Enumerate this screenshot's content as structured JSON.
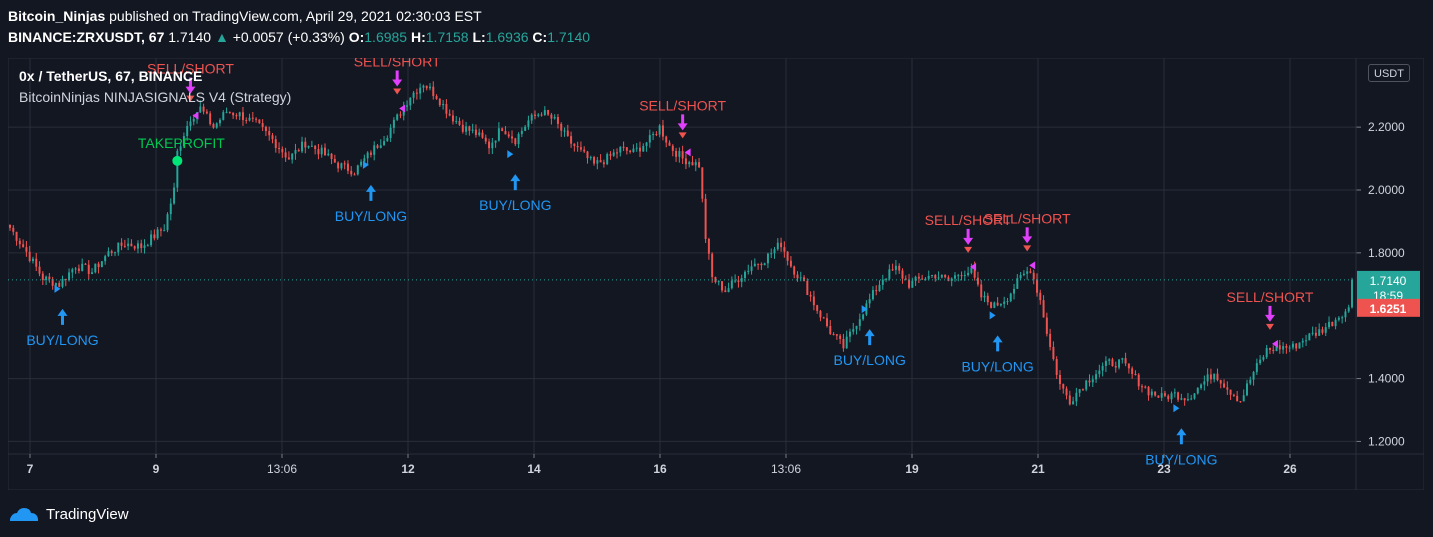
{
  "header": {
    "publisher": "Bitcoin_Ninjas",
    "published_text": "published on TradingView.com, April 29, 2021 02:30:03 EST",
    "symbol": "BINANCE:ZRXUSDT, 67",
    "last": "1.7140",
    "change": "+0.0057 (+0.33%)",
    "open_label": "O:",
    "open": "1.6985",
    "high_label": "H:",
    "high": "1.7158",
    "low_label": "L:",
    "low": "1.6936",
    "close_label": "C:",
    "close": "1.7140"
  },
  "legend": {
    "title": "0x / TetherUS, 67, BINANCE",
    "indicator": "BitcoinNinjas NINJASIGNALS V4 (Strategy)"
  },
  "price_axis": {
    "currency": "USDT",
    "last_price_label": "1.7140",
    "countdown_label": "18:59",
    "red_label": "1.6251"
  },
  "footer": {
    "brand": "TradingView"
  },
  "colors": {
    "background": "#131722",
    "up": "#26a69a",
    "down": "#ef5350",
    "buy": "#2196f3",
    "sell": "#ef5350",
    "magenta": "#e040fb",
    "grid": "#2a2e39"
  },
  "chart_data": {
    "type": "candlestick",
    "ylim": [
      1.16,
      2.42
    ],
    "y_ticks": [
      "2.2000",
      "2.0000",
      "1.8000",
      "1.4000",
      "1.2000"
    ],
    "x_ticks": [
      "7",
      "9",
      "13:06",
      "12",
      "14",
      "16",
      "13:06",
      "19",
      "21",
      "23",
      "26"
    ],
    "bold_x_ticks": [
      "7",
      "9",
      "12",
      "14",
      "16",
      "19",
      "21",
      "23",
      "26"
    ],
    "grid": true,
    "series": [
      {
        "values": [
          [
            0,
            1.88
          ],
          [
            4,
            1.82
          ],
          [
            10,
            1.72
          ],
          [
            15,
            1.7
          ],
          [
            20,
            1.76
          ],
          [
            25,
            1.74
          ],
          [
            30,
            1.8
          ],
          [
            35,
            1.83
          ],
          [
            40,
            1.82
          ],
          [
            47,
            1.88
          ],
          [
            50,
            2.0
          ],
          [
            51,
            2.12
          ],
          [
            53,
            2.18
          ],
          [
            55,
            2.23
          ],
          [
            58,
            2.26
          ],
          [
            62,
            2.2
          ],
          [
            66,
            2.25
          ],
          [
            70,
            2.24
          ],
          [
            75,
            2.21
          ],
          [
            80,
            2.16
          ],
          [
            85,
            2.1
          ],
          [
            90,
            2.15
          ],
          [
            95,
            2.12
          ],
          [
            100,
            2.08
          ],
          [
            105,
            2.06
          ],
          [
            110,
            2.12
          ],
          [
            115,
            2.18
          ],
          [
            118,
            2.23
          ],
          [
            122,
            2.3
          ],
          [
            126,
            2.34
          ],
          [
            130,
            2.3
          ],
          [
            134,
            2.24
          ],
          [
            138,
            2.2
          ],
          [
            142,
            2.18
          ],
          [
            146,
            2.14
          ],
          [
            150,
            2.2
          ],
          [
            154,
            2.16
          ],
          [
            158,
            2.22
          ],
          [
            162,
            2.25
          ],
          [
            166,
            2.22
          ],
          [
            170,
            2.16
          ],
          [
            174,
            2.12
          ],
          [
            178,
            2.08
          ],
          [
            182,
            2.1
          ],
          [
            186,
            2.13
          ],
          [
            190,
            2.12
          ],
          [
            195,
            2.16
          ],
          [
            198,
            2.2
          ],
          [
            201,
            2.14
          ],
          [
            205,
            2.1
          ],
          [
            210,
            2.08
          ],
          [
            212,
            1.85
          ],
          [
            214,
            1.72
          ],
          [
            218,
            1.68
          ],
          [
            222,
            1.72
          ],
          [
            226,
            1.76
          ],
          [
            230,
            1.78
          ],
          [
            235,
            1.83
          ],
          [
            238,
            1.76
          ],
          [
            242,
            1.7
          ],
          [
            246,
            1.62
          ],
          [
            250,
            1.55
          ],
          [
            254,
            1.5
          ],
          [
            258,
            1.58
          ],
          [
            262,
            1.65
          ],
          [
            266,
            1.72
          ],
          [
            270,
            1.75
          ],
          [
            274,
            1.7
          ],
          [
            278,
            1.72
          ],
          [
            282,
            1.73
          ],
          [
            286,
            1.71
          ],
          [
            290,
            1.74
          ],
          [
            293,
            1.74
          ],
          [
            296,
            1.66
          ],
          [
            300,
            1.63
          ],
          [
            304,
            1.66
          ],
          [
            308,
            1.72
          ],
          [
            311,
            1.75
          ],
          [
            314,
            1.65
          ],
          [
            317,
            1.5
          ],
          [
            320,
            1.38
          ],
          [
            323,
            1.33
          ],
          [
            327,
            1.38
          ],
          [
            331,
            1.42
          ],
          [
            335,
            1.45
          ],
          [
            339,
            1.45
          ],
          [
            343,
            1.4
          ],
          [
            347,
            1.36
          ],
          [
            351,
            1.34
          ],
          [
            355,
            1.35
          ],
          [
            359,
            1.34
          ],
          [
            363,
            1.38
          ],
          [
            367,
            1.42
          ],
          [
            371,
            1.37
          ],
          [
            375,
            1.33
          ],
          [
            379,
            1.42
          ],
          [
            383,
            1.49
          ],
          [
            387,
            1.5
          ],
          [
            391,
            1.5
          ],
          [
            395,
            1.53
          ],
          [
            399,
            1.55
          ],
          [
            403,
            1.58
          ],
          [
            406,
            1.61
          ],
          [
            408,
            1.62
          ],
          [
            409,
            1.714
          ]
        ]
      }
    ],
    "annotations": [
      {
        "text": "BUY/LONG",
        "type": "buy",
        "at": 16
      },
      {
        "text": "SELL/SHORT",
        "type": "sell",
        "at": 55
      },
      {
        "text": "TAKEPROFIT",
        "type": "tp",
        "at": 51
      },
      {
        "text": "BUY/LONG",
        "type": "buy",
        "at": 110
      },
      {
        "text": "SELL/SHORT",
        "type": "sell",
        "at": 118
      },
      {
        "text": "BUY/LONG",
        "type": "buy",
        "at": 154
      },
      {
        "text": "SELL/SHORT",
        "type": "sell",
        "at": 205
      },
      {
        "text": "BUY/LONG",
        "type": "buy",
        "at": 262
      },
      {
        "text": "SELL/SHORT",
        "type": "sell",
        "at": 292
      },
      {
        "text": "BUY/LONG",
        "type": "buy",
        "at": 301
      },
      {
        "text": "SELL/SHORT",
        "type": "sell",
        "at": 310
      },
      {
        "text": "BUY/LONG",
        "type": "buy",
        "at": 357
      },
      {
        "text": "SELL/SHORT",
        "type": "sell",
        "at": 384
      }
    ]
  }
}
